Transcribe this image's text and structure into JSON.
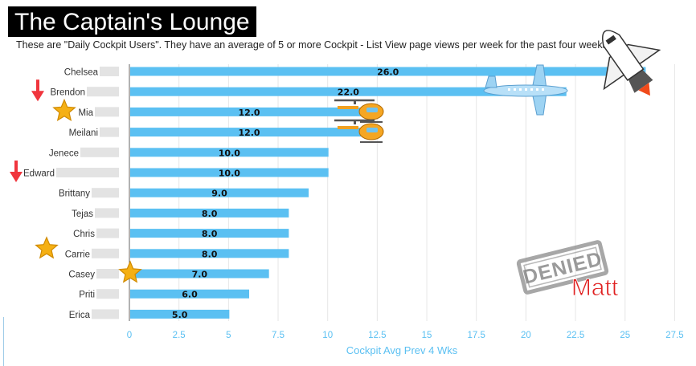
{
  "header": {
    "title": "The Captain's Lounge",
    "subtitle": "These are \"Daily Cockpit Users\". They have an average of 5 or more Cockpit - List View page views per week for the past four weeks:"
  },
  "stamp": {
    "text": "DENIED",
    "signature": "Matt",
    "stamp_color": "#8a8a8a",
    "signature_color": "#e02020"
  },
  "colors": {
    "bar": "#5bc0f2",
    "axis_text": "#5bc0f2",
    "grid": "#e6e6e6",
    "arrow": "#f0353d",
    "star": "#f5b014"
  },
  "chart_data": {
    "type": "bar",
    "orientation": "horizontal",
    "categories": [
      "Chelsea",
      "Brendon",
      "Mia",
      "Meilani",
      "Jenece",
      "Edward",
      "Brittany",
      "Tejas",
      "Chris",
      "Carrie",
      "Casey",
      "Priti",
      "Erica"
    ],
    "values": [
      26.0,
      22.0,
      12.0,
      12.0,
      10.0,
      10.0,
      9.0,
      8.0,
      8.0,
      8.0,
      7.0,
      6.0,
      5.0
    ],
    "data_labels": [
      "26.0",
      "22.0",
      "12.0",
      "12.0",
      "10.0",
      "10.0",
      "9.0",
      "8.0",
      "8.0",
      "8.0",
      "7.0",
      "6.0",
      "5.0"
    ],
    "xlabel": "Cockpit Avg Prev 4 Wks",
    "xlim": [
      0,
      28
    ],
    "xticks": [
      0,
      2.5,
      5,
      7.5,
      10,
      12.5,
      15,
      17.5,
      20,
      22.5,
      25,
      27.5
    ],
    "xtick_labels": [
      "0",
      "2.5",
      "5",
      "7.5",
      "10",
      "12.5",
      "15",
      "17.5",
      "20",
      "22.5",
      "25",
      "27.5"
    ],
    "grid": true,
    "legend": "none"
  },
  "decorations": [
    {
      "icon": "space-shuttle-icon",
      "category": "Chelsea"
    },
    {
      "icon": "airplane-icon",
      "category": "Brendon"
    },
    {
      "icon": "helicopter-icon",
      "category": "Mia"
    },
    {
      "icon": "helicopter-icon",
      "category": "Meilani"
    },
    {
      "icon": "down-arrow-icon",
      "category": "Brendon"
    },
    {
      "icon": "down-arrow-icon",
      "category": "Edward"
    },
    {
      "icon": "star-icon",
      "category": "Mia"
    },
    {
      "icon": "star-icon",
      "category": "Carrie"
    },
    {
      "icon": "star-icon",
      "category": "Casey"
    }
  ]
}
